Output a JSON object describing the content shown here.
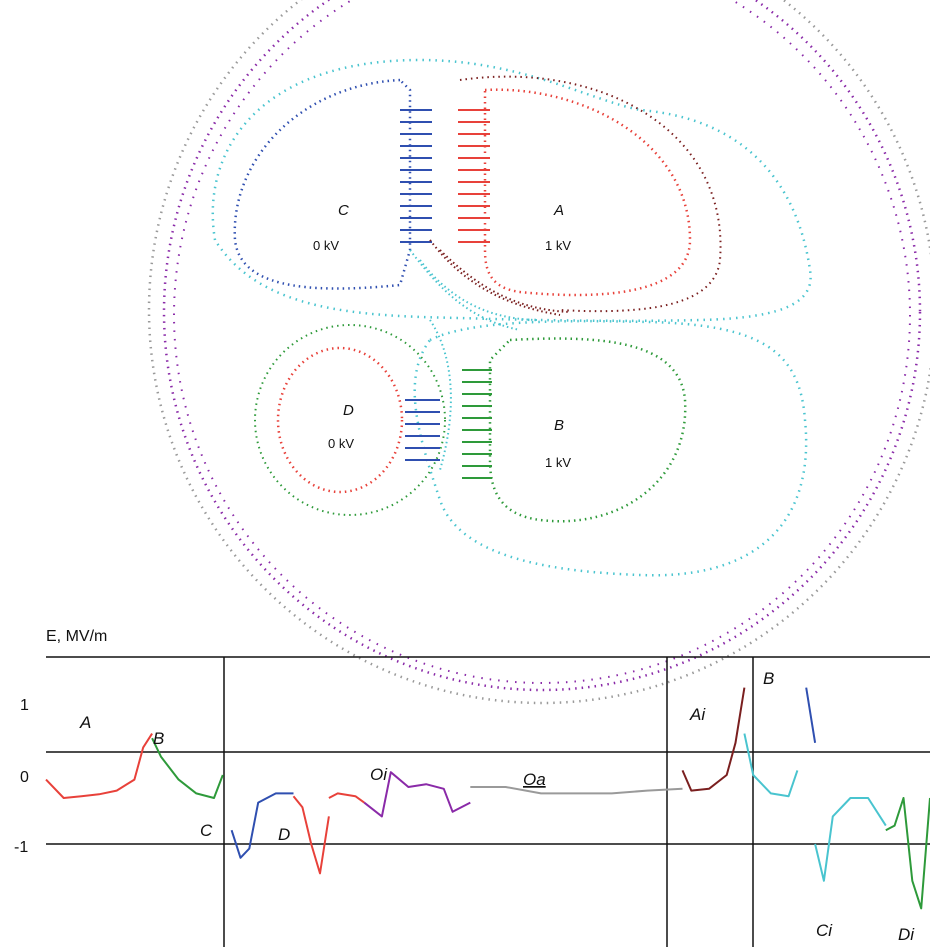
{
  "diagram": {
    "electrodes": [
      {
        "id": "A",
        "name": "A",
        "voltage": "1  kV",
        "color": "#e8413a"
      },
      {
        "id": "B",
        "name": "B",
        "voltage": "1  kV",
        "color": "#2e9a3a"
      },
      {
        "id": "C",
        "name": "C",
        "voltage": "0  kV",
        "color": "#2f4fb0"
      },
      {
        "id": "D",
        "name": "D",
        "voltage": "0  kV",
        "color": "#e8413a"
      }
    ],
    "colors": {
      "outer": "#9a9a9a",
      "purple": "#8a2aa8",
      "cyan": "#49c4cf",
      "brown": "#7a1f1f",
      "red": "#e8413a",
      "green": "#2e9a3a",
      "blue": "#2f4fb0"
    }
  },
  "chart": {
    "ylabel": "E,  MV/m",
    "tick_labels": [
      "1",
      "0",
      "-1"
    ],
    "segment_labels": [
      {
        "text": "A",
        "underline": false
      },
      {
        "text": "B",
        "underline": false
      },
      {
        "text": "C",
        "underline": false
      },
      {
        "text": "D",
        "underline": false
      },
      {
        "text": "Oi",
        "underline": false
      },
      {
        "text": "Oa",
        "underline": true
      },
      {
        "text": "Ai",
        "underline": false
      },
      {
        "text": "B",
        "underline": false
      },
      {
        "text": "Ci",
        "underline": false
      },
      {
        "text": "Di",
        "underline": false
      }
    ]
  },
  "chart_data": {
    "type": "line",
    "ylabel": "E,  MV/m",
    "ylim": [
      -1.3,
      1.5
    ],
    "y_ticks": [
      1,
      0,
      -1
    ],
    "series": [
      {
        "color": "#e8413a",
        "x": [
          0,
          2,
          4,
          6,
          8,
          10,
          11,
          12
        ],
        "y": [
          0.2,
          0.0,
          0.02,
          0.04,
          0.08,
          0.2,
          0.55,
          0.7
        ]
      },
      {
        "color": "#2e9a3a",
        "x": [
          12,
          13,
          15,
          17,
          19,
          20
        ],
        "y": [
          0.65,
          0.45,
          0.2,
          0.05,
          0.0,
          0.25
        ]
      },
      {
        "color": "#2f4fb0",
        "x": [
          21,
          22,
          23,
          24,
          26,
          28
        ],
        "y": [
          -0.35,
          -0.65,
          -0.55,
          -0.05,
          0.05,
          0.05
        ]
      },
      {
        "color": "#e8413a",
        "x": [
          28,
          29,
          30,
          31,
          32
        ],
        "y": [
          0.02,
          -0.1,
          -0.5,
          -0.82,
          -0.2
        ]
      },
      {
        "color": "#e8413a",
        "x": [
          32,
          33,
          35,
          36
        ],
        "y": [
          0.0,
          0.05,
          0.02,
          -0.05
        ]
      },
      {
        "color": "#8a2aa8",
        "x": [
          36,
          38,
          39,
          41,
          43,
          45,
          46,
          48
        ],
        "y": [
          -0.05,
          -0.2,
          0.28,
          0.12,
          0.15,
          0.1,
          -0.15,
          -0.05
        ]
      },
      {
        "color": "#9a9a9a",
        "x": [
          48,
          52,
          56,
          60,
          64,
          68,
          72
        ],
        "y": [
          0.12,
          0.12,
          0.05,
          0.05,
          0.05,
          0.08,
          0.1
        ]
      },
      {
        "color": "#7a1f1f",
        "x": [
          72,
          73,
          75,
          77,
          78,
          79
        ],
        "y": [
          0.3,
          0.08,
          0.1,
          0.25,
          0.6,
          1.2
        ]
      },
      {
        "color": "#49c4cf",
        "x": [
          79,
          80,
          82,
          84,
          85
        ],
        "y": [
          0.7,
          0.25,
          0.05,
          0.02,
          0.3
        ]
      },
      {
        "color": "#2f4fb0",
        "x": [
          86,
          87
        ],
        "y": [
          1.2,
          0.6
        ]
      },
      {
        "color": "#49c4cf",
        "x": [
          87,
          88,
          89,
          91,
          93,
          95
        ],
        "y": [
          -0.5,
          -0.9,
          -0.2,
          0.0,
          0.0,
          -0.3
        ]
      },
      {
        "color": "#2e9a3a",
        "x": [
          95,
          96,
          97,
          98,
          99,
          100
        ],
        "y": [
          -0.35,
          -0.3,
          0.0,
          -0.9,
          -1.2,
          0.0
        ]
      }
    ]
  }
}
